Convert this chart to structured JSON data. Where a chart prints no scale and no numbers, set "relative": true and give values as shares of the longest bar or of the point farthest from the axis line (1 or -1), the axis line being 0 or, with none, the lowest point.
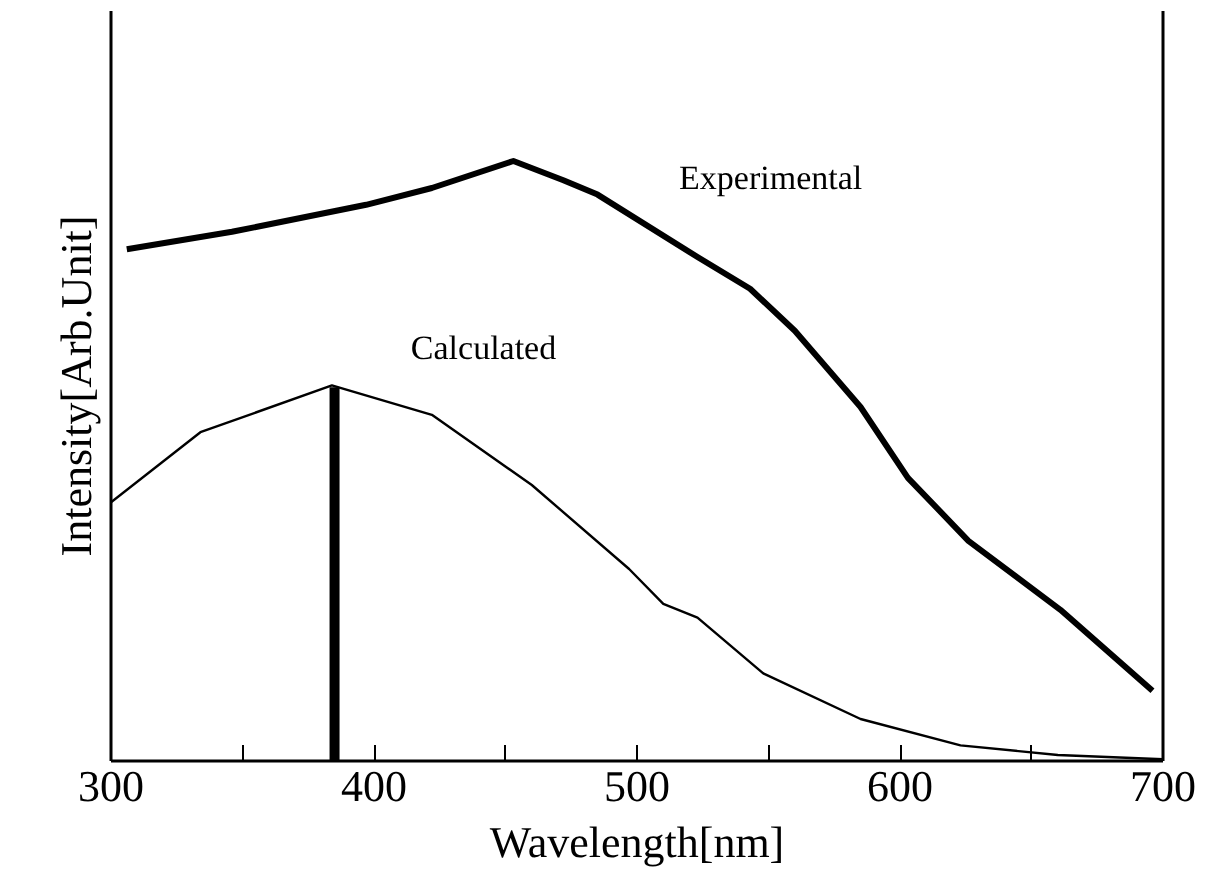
{
  "chart_data": {
    "type": "line",
    "xlabel": "Wavelength[nm]",
    "ylabel": "Intensity[Arb.Unit]",
    "relative": true,
    "xlim": [
      300,
      700
    ],
    "xticks": [
      300,
      {
        "value": 350,
        "label": null
      },
      400,
      {
        "value": 450,
        "label": null
      },
      500,
      {
        "value": 550,
        "label": null
      },
      600,
      {
        "value": 650,
        "label": null
      },
      700
    ],
    "grid": false,
    "legend": false,
    "marker": "none",
    "series": [
      {
        "name": "Experimental",
        "color": "#000000",
        "x": [
          306,
          346,
          397,
          422,
          453,
          472,
          485,
          523,
          543,
          560,
          585,
          603,
          626,
          661,
          696
        ],
        "values": [
          0.853,
          0.882,
          0.927,
          0.955,
          1.0,
          0.968,
          0.944,
          0.84,
          0.787,
          0.717,
          0.59,
          0.472,
          0.367,
          0.252,
          0.117
        ]
      },
      {
        "name": "Calculated",
        "color": "#000000",
        "x": [
          300,
          334,
          384,
          422,
          460,
          497,
          510,
          523,
          548,
          585,
          623,
          660,
          700
        ],
        "values": [
          0.431,
          0.548,
          0.626,
          0.577,
          0.46,
          0.32,
          0.262,
          0.239,
          0.146,
          0.07,
          0.026,
          0.01,
          0.003
        ]
      },
      {
        "color": "#000000",
        "x": [
          385,
          385
        ],
        "values": [
          0,
          0.623
        ]
      }
    ]
  }
}
